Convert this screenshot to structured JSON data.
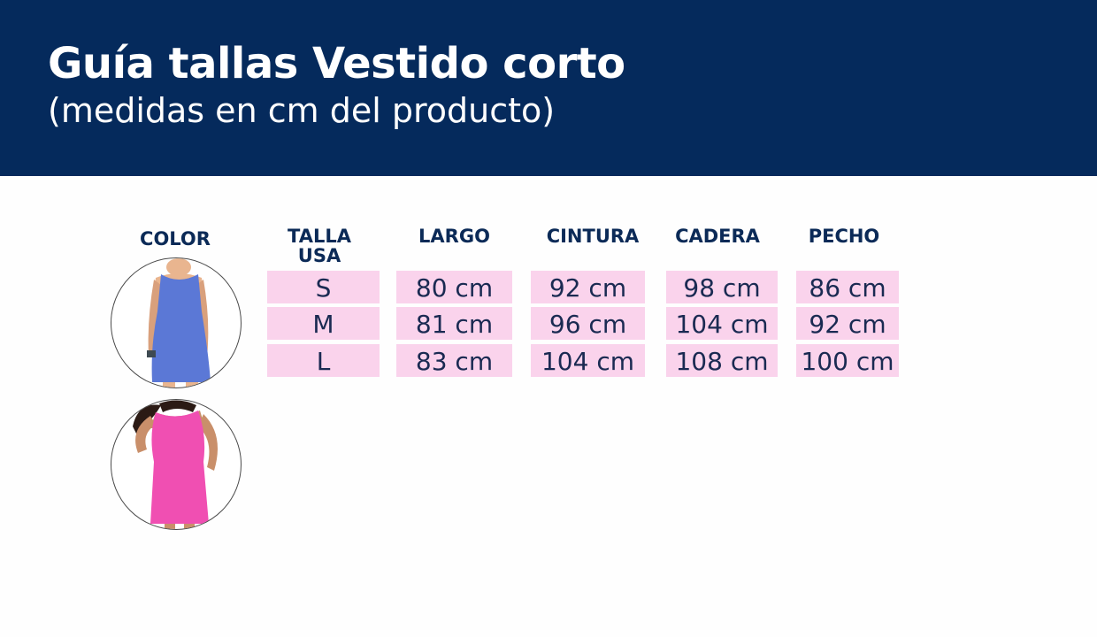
{
  "header": {
    "title": "Guía tallas Vestido corto",
    "subtitle": "(medidas en cm del producto)"
  },
  "colors": {
    "banner": "#052a5c",
    "cell_bg": "#fad3ec",
    "header_text": "#0b2a57",
    "swatches": [
      "#5b78d6",
      "#f04fb2"
    ]
  },
  "table": {
    "color_header": "COLOR",
    "talla_header_line1": "TALLA",
    "talla_header_line2": "USA",
    "columns": [
      "LARGO",
      "CINTURA",
      "CADERA",
      "PECHO"
    ],
    "rows": [
      {
        "talla": "S",
        "largo": "80 cm",
        "cintura": "92 cm",
        "cadera": "98 cm",
        "pecho": "86 cm"
      },
      {
        "talla": "M",
        "largo": "81 cm",
        "cintura": "96 cm",
        "cadera": "104 cm",
        "pecho": "92 cm"
      },
      {
        "talla": "L",
        "largo": "83 cm",
        "cintura": "104 cm",
        "cadera": "108 cm",
        "pecho": "100 cm"
      }
    ]
  },
  "color_options": [
    {
      "name": "blue-dress-icon"
    },
    {
      "name": "pink-dress-icon"
    }
  ]
}
